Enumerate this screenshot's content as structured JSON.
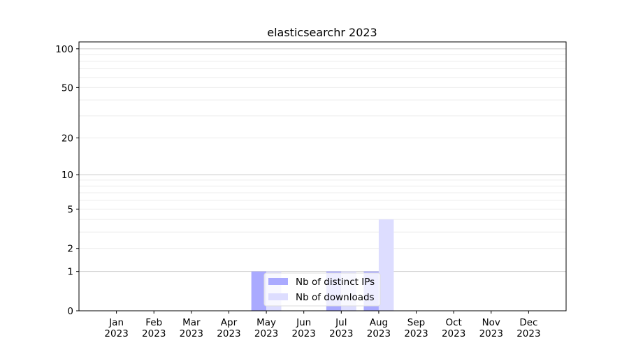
{
  "chart_data": {
    "type": "bar",
    "title": "elasticsearchr 2023",
    "xlabel": "",
    "ylabel": "",
    "y_scale": "log(1+y)",
    "ylim": [
      0,
      113
    ],
    "y_ticks": [
      0,
      1,
      2,
      5,
      10,
      20,
      50,
      100
    ],
    "grid": "horizontal, major at 1/10/100 and minor in between",
    "categories": [
      "Jan\n2023",
      "Feb\n2023",
      "Mar\n2023",
      "Apr\n2023",
      "May\n2023",
      "Jun\n2023",
      "Jul\n2023",
      "Aug\n2023",
      "Sep\n2023",
      "Oct\n2023",
      "Nov\n2023",
      "Dec\n2023"
    ],
    "series": [
      {
        "name": "Nb of distinct IPs",
        "color": "#aaaaff",
        "values": [
          0,
          0,
          0,
          0,
          1,
          0,
          1,
          1,
          0,
          0,
          0,
          0
        ]
      },
      {
        "name": "Nb of downloads",
        "color": "#ddddff",
        "values": [
          0,
          0,
          0,
          0,
          1,
          0,
          1,
          4,
          0,
          0,
          0,
          0
        ]
      }
    ],
    "legend_position": "lower center"
  }
}
